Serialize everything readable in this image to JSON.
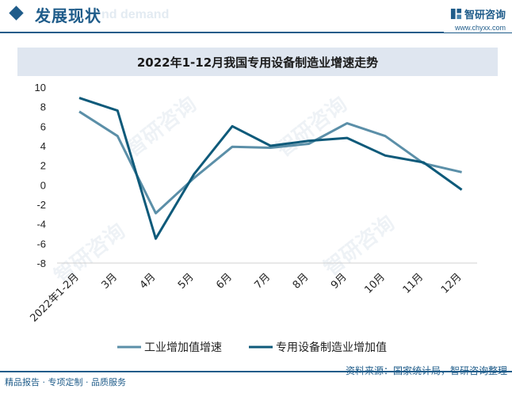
{
  "header": {
    "title": "发展现状",
    "bg_text": "nd demand",
    "brand_name": "智研咨询",
    "brand_url": "www.chyxx.com"
  },
  "footer": {
    "left": "精品报告 · 专项定制 · 品质服务",
    "source": "资料来源：国家统计局，智研咨询整理"
  },
  "watermark": "智研咨询",
  "colors": {
    "brand": "#1f5c8a",
    "series1": "#5b8fa8",
    "series2": "#0e5a7a"
  },
  "chart_data": {
    "type": "line",
    "title": "2022年1-12月我国专用设备制造业增速走势",
    "categories": [
      "2022年1-2月",
      "3月",
      "4月",
      "5月",
      "6月",
      "7月",
      "8月",
      "9月",
      "10月",
      "11月",
      "12月"
    ],
    "series": [
      {
        "name": "工业增加值增速",
        "values": [
          7.5,
          5.0,
          -2.9,
          0.7,
          3.9,
          3.8,
          4.2,
          6.3,
          5.0,
          2.2,
          1.3
        ]
      },
      {
        "name": "专用设备制造业增加值",
        "values": [
          8.9,
          7.6,
          -5.5,
          1.1,
          6.0,
          4.0,
          4.5,
          4.8,
          3.0,
          2.3,
          -0.5
        ]
      }
    ],
    "ylim": [
      -8,
      10
    ],
    "yticks": [
      10,
      8,
      6,
      4,
      2,
      0,
      -2,
      -4,
      -6,
      -8
    ],
    "xlabel": "",
    "ylabel": "",
    "grid": false,
    "legend": "bottom"
  }
}
